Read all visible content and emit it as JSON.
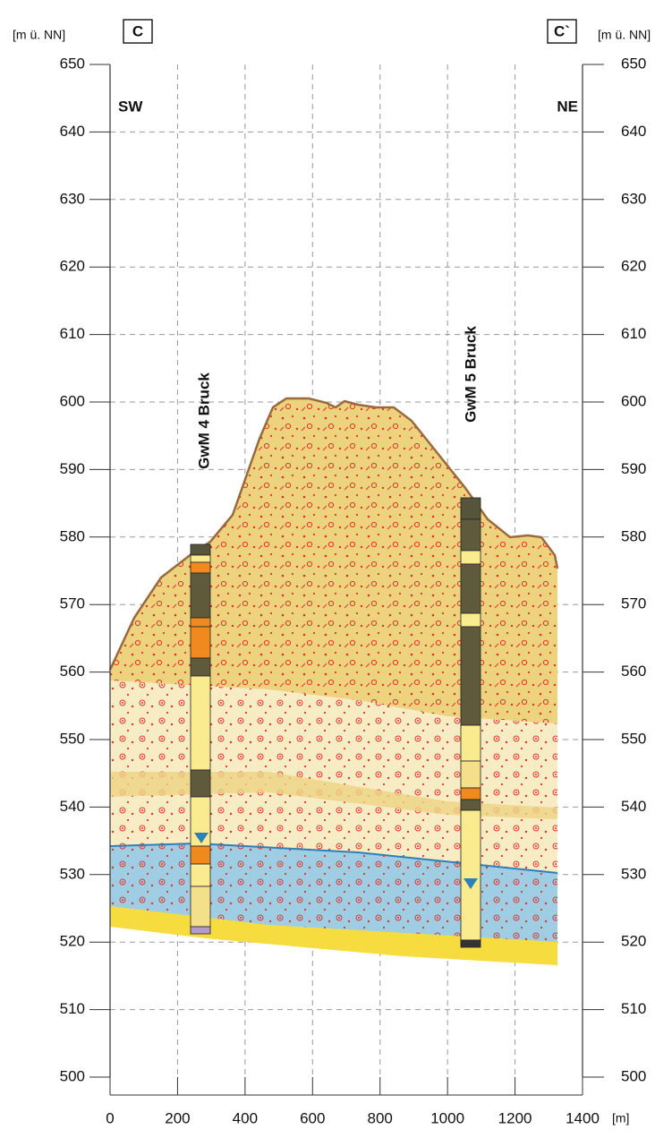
{
  "header": {
    "left_unit": "[m ü. NN]",
    "right_unit": "[m ü. NN]",
    "left_section": "C",
    "right_section": "C`",
    "left_direction": "SW",
    "right_direction": "NE"
  },
  "y_axis": {
    "ticks": [
      650,
      640,
      630,
      620,
      610,
      600,
      590,
      580,
      570,
      560,
      550,
      540,
      530,
      520,
      510,
      500
    ]
  },
  "x_axis": {
    "ticks": [
      0,
      200,
      400,
      600,
      800,
      1000,
      1200,
      1400
    ],
    "unit": "[m]"
  },
  "boreholes": [
    {
      "label": "GwM 4 Bruck"
    },
    {
      "label": "GwM 5 Bruck"
    }
  ]
}
